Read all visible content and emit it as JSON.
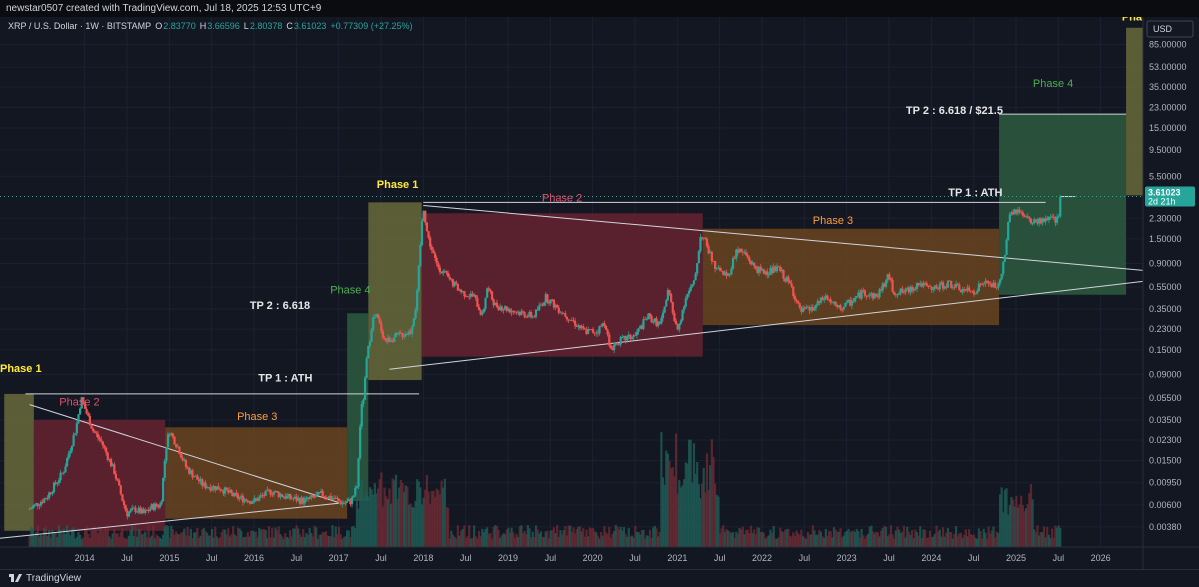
{
  "header": {
    "created_line": "newstar0507 created with TradingView.com, Jul 18, 2025 12:53 UTC+9",
    "symbol_line": "XRP / U.S. Dollar · 1W · BITSTAMP",
    "ohlc": [
      {
        "label": "O",
        "value": "2.83770"
      },
      {
        "label": "H",
        "value": "3.66596"
      },
      {
        "label": "L",
        "value": "2.80378"
      },
      {
        "label": "C",
        "value": "3.61023"
      }
    ],
    "change": "+0.77309 (+27.25%)"
  },
  "currency_button": "USD",
  "footer": {
    "brand": "TradingView"
  },
  "colors": {
    "background": "#131722",
    "up": "#26a69a",
    "down": "#ef5350",
    "phase1": "#686a3a",
    "phase2": "#662230",
    "phase3": "#6b4420",
    "phase4": "#2e5a3e",
    "label_phase1": "#ffeb3b",
    "label_phase2": "#e0506a",
    "label_phase3": "#ff9d3b",
    "label_phase4": "#4caf50",
    "price_label_bg": "#26a69a"
  },
  "chart_data": {
    "type": "candlestick",
    "y_scale": "log",
    "ylim": [
      0.0025,
      150
    ],
    "xlim": [
      2013.0,
      2026.5
    ],
    "x_tick_labels": [
      {
        "x": 2014.0,
        "label": "2014"
      },
      {
        "x": 2014.5,
        "label": "Jul"
      },
      {
        "x": 2015.0,
        "label": "2015"
      },
      {
        "x": 2015.5,
        "label": "Jul"
      },
      {
        "x": 2016.0,
        "label": "2016"
      },
      {
        "x": 2016.5,
        "label": "Jul"
      },
      {
        "x": 2017.0,
        "label": "2017"
      },
      {
        "x": 2017.5,
        "label": "Jul"
      },
      {
        "x": 2018.0,
        "label": "2018"
      },
      {
        "x": 2018.5,
        "label": "Jul"
      },
      {
        "x": 2019.0,
        "label": "2019"
      },
      {
        "x": 2019.5,
        "label": "Jul"
      },
      {
        "x": 2020.0,
        "label": "2020"
      },
      {
        "x": 2020.5,
        "label": "Jul"
      },
      {
        "x": 2021.0,
        "label": "2021"
      },
      {
        "x": 2021.5,
        "label": "Jul"
      },
      {
        "x": 2022.0,
        "label": "2022"
      },
      {
        "x": 2022.5,
        "label": "Jul"
      },
      {
        "x": 2023.0,
        "label": "2023"
      },
      {
        "x": 2023.5,
        "label": "Jul"
      },
      {
        "x": 2024.0,
        "label": "2024"
      },
      {
        "x": 2024.5,
        "label": "Jul"
      },
      {
        "x": 2025.0,
        "label": "2025"
      },
      {
        "x": 2025.5,
        "label": "Jul"
      },
      {
        "x": 2026.0,
        "label": "2026"
      }
    ],
    "y_tick_labels": [
      {
        "v": 85,
        "label": "85.00000"
      },
      {
        "v": 53,
        "label": "53.00000"
      },
      {
        "v": 35,
        "label": "35.00000"
      },
      {
        "v": 23,
        "label": "23.00000"
      },
      {
        "v": 15,
        "label": "15.00000"
      },
      {
        "v": 9.5,
        "label": "9.50000"
      },
      {
        "v": 5.5,
        "label": "5.50000"
      },
      {
        "v": 2.3,
        "label": "2.30000"
      },
      {
        "v": 1.5,
        "label": "1.50000"
      },
      {
        "v": 0.9,
        "label": "0.90000"
      },
      {
        "v": 0.55,
        "label": "0.55000"
      },
      {
        "v": 0.35,
        "label": "0.35000"
      },
      {
        "v": 0.23,
        "label": "0.23000"
      },
      {
        "v": 0.15,
        "label": "0.15000"
      },
      {
        "v": 0.09,
        "label": "0.09000"
      },
      {
        "v": 0.055,
        "label": "0.05500"
      },
      {
        "v": 0.035,
        "label": "0.03500"
      },
      {
        "v": 0.023,
        "label": "0.02300"
      },
      {
        "v": 0.015,
        "label": "0.01500"
      },
      {
        "v": 0.0095,
        "label": "0.00950"
      },
      {
        "v": 0.006,
        "label": "0.00600"
      },
      {
        "v": 0.0038,
        "label": "0.00380"
      }
    ],
    "last_price": {
      "value": 3.61023,
      "label": "3.61023",
      "countdown": "2d 21h"
    },
    "price_anchors": [
      [
        2013.35,
        0.0055
      ],
      [
        2013.55,
        0.007
      ],
      [
        2013.75,
        0.012
      ],
      [
        2013.9,
        0.03
      ],
      [
        2013.96,
        0.055
      ],
      [
        2014.0,
        0.045
      ],
      [
        2014.1,
        0.028
      ],
      [
        2014.2,
        0.022
      ],
      [
        2014.35,
        0.012
      ],
      [
        2014.45,
        0.0065
      ],
      [
        2014.5,
        0.005
      ],
      [
        2014.6,
        0.0055
      ],
      [
        2014.7,
        0.005
      ],
      [
        2014.8,
        0.0058
      ],
      [
        2014.9,
        0.006
      ],
      [
        2014.96,
        0.02
      ],
      [
        2015.0,
        0.028
      ],
      [
        2015.1,
        0.02
      ],
      [
        2015.2,
        0.013
      ],
      [
        2015.4,
        0.009
      ],
      [
        2015.6,
        0.0085
      ],
      [
        2015.8,
        0.007
      ],
      [
        2016.0,
        0.0065
      ],
      [
        2016.2,
        0.008
      ],
      [
        2016.4,
        0.007
      ],
      [
        2016.6,
        0.0065
      ],
      [
        2016.8,
        0.0075
      ],
      [
        2016.95,
        0.0068
      ],
      [
        2017.05,
        0.0062
      ],
      [
        2017.15,
        0.0065
      ],
      [
        2017.22,
        0.009
      ],
      [
        2017.26,
        0.04
      ],
      [
        2017.3,
        0.06
      ],
      [
        2017.33,
        0.12
      ],
      [
        2017.4,
        0.28
      ],
      [
        2017.45,
        0.3
      ],
      [
        2017.55,
        0.18
      ],
      [
        2017.7,
        0.2
      ],
      [
        2017.85,
        0.22
      ],
      [
        2017.92,
        0.4
      ],
      [
        2017.97,
        1.5
      ],
      [
        2018.0,
        3.0
      ],
      [
        2018.05,
        1.6
      ],
      [
        2018.15,
        0.9
      ],
      [
        2018.3,
        0.65
      ],
      [
        2018.45,
        0.5
      ],
      [
        2018.6,
        0.45
      ],
      [
        2018.7,
        0.3
      ],
      [
        2018.75,
        0.55
      ],
      [
        2018.85,
        0.38
      ],
      [
        2019.0,
        0.35
      ],
      [
        2019.3,
        0.3
      ],
      [
        2019.45,
        0.45
      ],
      [
        2019.6,
        0.35
      ],
      [
        2019.75,
        0.28
      ],
      [
        2019.9,
        0.22
      ],
      [
        2020.05,
        0.22
      ],
      [
        2020.15,
        0.27
      ],
      [
        2020.2,
        0.15
      ],
      [
        2020.3,
        0.18
      ],
      [
        2020.5,
        0.2
      ],
      [
        2020.65,
        0.3
      ],
      [
        2020.8,
        0.25
      ],
      [
        2020.9,
        0.55
      ],
      [
        2020.95,
        0.3
      ],
      [
        2021.0,
        0.22
      ],
      [
        2021.1,
        0.45
      ],
      [
        2021.2,
        0.6
      ],
      [
        2021.28,
        1.7
      ],
      [
        2021.35,
        1.3
      ],
      [
        2021.45,
        0.8
      ],
      [
        2021.6,
        0.7
      ],
      [
        2021.7,
        1.2
      ],
      [
        2021.8,
        1.1
      ],
      [
        2021.9,
        0.85
      ],
      [
        2022.0,
        0.75
      ],
      [
        2022.2,
        0.8
      ],
      [
        2022.35,
        0.55
      ],
      [
        2022.45,
        0.33
      ],
      [
        2022.6,
        0.35
      ],
      [
        2022.75,
        0.45
      ],
      [
        2022.9,
        0.35
      ],
      [
        2023.0,
        0.38
      ],
      [
        2023.2,
        0.5
      ],
      [
        2023.35,
        0.45
      ],
      [
        2023.5,
        0.7
      ],
      [
        2023.55,
        0.5
      ],
      [
        2023.7,
        0.5
      ],
      [
        2023.85,
        0.6
      ],
      [
        2024.0,
        0.52
      ],
      [
        2024.2,
        0.6
      ],
      [
        2024.35,
        0.52
      ],
      [
        2024.5,
        0.5
      ],
      [
        2024.6,
        0.6
      ],
      [
        2024.7,
        0.58
      ],
      [
        2024.8,
        0.55
      ],
      [
        2024.87,
        1.1
      ],
      [
        2024.92,
        2.4
      ],
      [
        2025.0,
        2.7
      ],
      [
        2025.1,
        2.3
      ],
      [
        2025.2,
        2.1
      ],
      [
        2025.3,
        2.2
      ],
      [
        2025.4,
        2.3
      ],
      [
        2025.45,
        2.2
      ],
      [
        2025.5,
        2.25
      ],
      [
        2025.53,
        3.61
      ]
    ],
    "boxes": [
      {
        "kind": "phase1",
        "x0": 2013.05,
        "x1": 2013.4,
        "y0": 0.0035,
        "y1": 0.06
      },
      {
        "kind": "phase2",
        "x0": 2013.4,
        "x1": 2014.95,
        "y0": 0.0035,
        "y1": 0.035
      },
      {
        "kind": "phase3",
        "x0": 2014.95,
        "x1": 2017.1,
        "y0": 0.0045,
        "y1": 0.03
      },
      {
        "kind": "phase4",
        "x0": 2017.1,
        "x1": 2017.35,
        "y0": 0.0065,
        "y1": 0.32
      },
      {
        "kind": "phase1",
        "x0": 2017.35,
        "x1": 2017.98,
        "y0": 0.08,
        "y1": 3.2
      },
      {
        "kind": "phase2",
        "x0": 2017.98,
        "x1": 2021.3,
        "y0": 0.13,
        "y1": 2.55
      },
      {
        "kind": "phase3",
        "x0": 2021.3,
        "x1": 2024.8,
        "y0": 0.25,
        "y1": 1.85
      },
      {
        "kind": "phase4",
        "x0": 2024.8,
        "x1": 2026.3,
        "y0": 0.47,
        "y1": 20
      },
      {
        "kind": "phase1",
        "x0": 2026.3,
        "x1": 2026.5,
        "y0": 3.7,
        "y1": 120
      }
    ],
    "lines": [
      {
        "x0": 2013.3,
        "y0": 0.06,
        "x1": 2017.95,
        "y1": 0.06
      },
      {
        "x0": 2013.35,
        "y0": 0.048,
        "x1": 2017.0,
        "y1": 0.0063
      },
      {
        "x0": 2013.0,
        "y0": 0.003,
        "x1": 2017.0,
        "y1": 0.0062
      },
      {
        "x0": 2018.0,
        "y0": 3.2,
        "x1": 2025.35,
        "y1": 3.2
      },
      {
        "x0": 2025.53,
        "y0": 3.61,
        "x1": 2025.7,
        "y1": 3.61
      },
      {
        "x0": 2018.0,
        "y0": 3.0,
        "x1": 2026.5,
        "y1": 0.78
      },
      {
        "x0": 2017.6,
        "y0": 0.1,
        "x1": 2026.5,
        "y1": 0.62
      },
      {
        "x0": 2024.8,
        "y0": 20,
        "x1": 2026.3,
        "y1": 20
      }
    ],
    "annotations": [
      {
        "text": "Phase 1",
        "x": 2013.0,
        "y": 0.095,
        "kind": "phase1"
      },
      {
        "text": "Phase 2",
        "x": 2013.7,
        "y": 0.047,
        "kind": "phase2"
      },
      {
        "text": "Phase 3",
        "x": 2015.8,
        "y": 0.035,
        "kind": "phase3"
      },
      {
        "text": "TP 1 : ATH",
        "x": 2016.05,
        "y": 0.078,
        "kind": "white"
      },
      {
        "text": "Phase 4",
        "x": 2016.9,
        "y": 0.48,
        "kind": "phase4"
      },
      {
        "text": "TP 2 : 6.618",
        "x": 2015.95,
        "y": 0.35,
        "kind": "white"
      },
      {
        "text": "Phase 1",
        "x": 2017.45,
        "y": 4.3,
        "kind": "phase1"
      },
      {
        "text": "Phase 2",
        "x": 2019.4,
        "y": 3.25,
        "kind": "phase2"
      },
      {
        "text": "Phase 3",
        "x": 2022.6,
        "y": 2.05,
        "kind": "phase3"
      },
      {
        "text": "TP 1 : ATH",
        "x": 2024.2,
        "y": 3.65,
        "kind": "white"
      },
      {
        "text": "Phase 4",
        "x": 2025.2,
        "y": 35,
        "kind": "phase4"
      },
      {
        "text": "TP 2 : 6.618 / $21.5",
        "x": 2023.7,
        "y": 20,
        "kind": "white"
      },
      {
        "text": "Phase",
        "x": 2026.25,
        "y": 140,
        "kind": "phase1"
      }
    ]
  }
}
